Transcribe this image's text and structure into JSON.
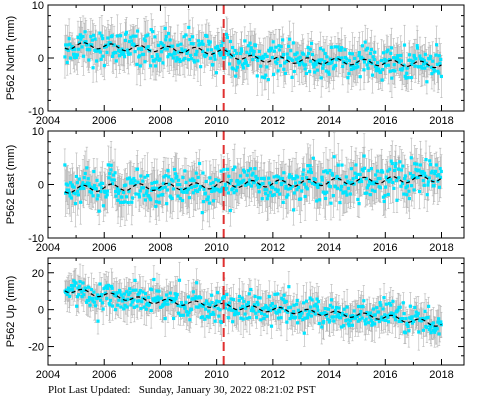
{
  "footer": {
    "label": "Plot Last Updated:",
    "timestamp": "Sunday, January 30, 2022 08:21:02 PST"
  },
  "colors": {
    "observations": "#00e5ff",
    "error_bars": "#b4b4b4",
    "model_line": "#000000",
    "event_marker": "#e03030"
  },
  "chart_data": [
    {
      "type": "scatter",
      "ylabel": "P562 North (mm)",
      "ylim": [
        -10,
        10
      ],
      "yticks": [
        -10,
        0,
        10
      ],
      "xlim": [
        2004,
        2018.8
      ],
      "xticks": [
        2004,
        2006,
        2008,
        2010,
        2012,
        2014,
        2016,
        2018
      ],
      "show_x_tick_labels": true,
      "event_line_x": 2010.25,
      "series": [
        {
          "x": [
            2004.6,
            2005.5,
            2006.5,
            2007.5,
            2008.5,
            2009.5,
            2010.25,
            2011.0,
            2012.0,
            2013.0,
            2014.0,
            2015.0,
            2016.0,
            2017.0,
            2018.0
          ],
          "y": [
            2.2,
            2.4,
            2.0,
            1.8,
            1.6,
            1.4,
            1.0,
            0.0,
            -0.3,
            -0.5,
            -0.6,
            -0.8,
            -0.9,
            -1.1,
            -1.3
          ],
          "scatter": 1.6
        }
      ]
    },
    {
      "type": "scatter",
      "ylabel": "P562 East (mm)",
      "ylim": [
        -10,
        10
      ],
      "yticks": [
        -10,
        0,
        10
      ],
      "xlim": [
        2004,
        2018.8
      ],
      "xticks": [
        2004,
        2006,
        2008,
        2010,
        2012,
        2014,
        2016,
        2018
      ],
      "show_x_tick_labels": true,
      "event_line_x": 2010.25,
      "series": [
        {
          "x": [
            2004.6,
            2005.5,
            2006.5,
            2007.5,
            2008.5,
            2009.5,
            2010.25,
            2011.0,
            2012.0,
            2013.0,
            2014.0,
            2015.0,
            2016.0,
            2017.0,
            2018.0
          ],
          "y": [
            -1.0,
            -0.7,
            -0.5,
            -0.5,
            -0.4,
            -0.3,
            0.0,
            0.1,
            0.2,
            0.3,
            0.5,
            0.7,
            0.8,
            1.0,
            1.2
          ],
          "scatter": 1.8
        }
      ]
    },
    {
      "type": "scatter",
      "ylabel": "P562 Up (mm)",
      "ylim": [
        -30,
        28
      ],
      "yticks": [
        -20,
        0,
        20
      ],
      "xlim": [
        2004,
        2018.8
      ],
      "xticks": [
        2004,
        2006,
        2008,
        2010,
        2012,
        2014,
        2016,
        2018
      ],
      "show_x_tick_labels": true,
      "event_line_x": 2010.25,
      "series": [
        {
          "x": [
            2004.6,
            2005.5,
            2006.5,
            2007.5,
            2008.5,
            2009.5,
            2010.25,
            2011.0,
            2012.0,
            2013.0,
            2014.0,
            2015.0,
            2016.0,
            2017.0,
            2018.0
          ],
          "y": [
            11,
            9,
            7,
            5,
            4,
            3,
            2,
            1,
            0,
            -1,
            -2,
            -3,
            -4,
            -6,
            -8
          ],
          "scatter": 4.0
        }
      ]
    }
  ]
}
